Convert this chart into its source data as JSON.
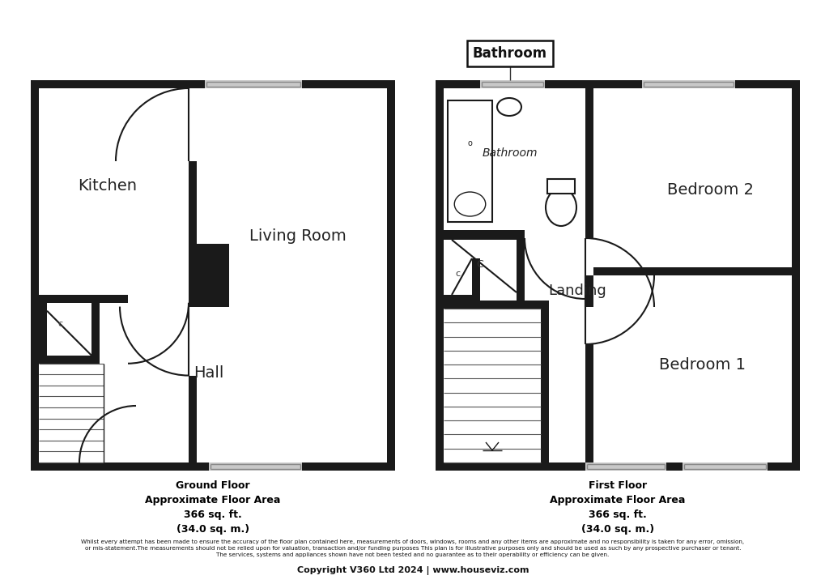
{
  "footer_ground": "Ground Floor\nApproximate Floor Area\n366 sq. ft.\n(34.0 sq. m.)",
  "footer_first": "First Floor\nApproximate Floor Area\n366 sq. ft.\n(34.0 sq. m.)",
  "disclaimer": "Whilst every attempt has been made to ensure the accuracy of the floor plan contained here, measurements of doors, windows, rooms and any other items are approximate and no responsibility is taken for any error, omission,\nor mis-statement.The measurements should not be relied upon for valuation, transaction and/or funding purposes This plan is for illustrative purposes only and should be used as such by any prospective purchaser or tenant.\nThe services, systems and appliances shown have not been tested and no guarantee as to their operability or efficiency can be given.",
  "copyright": "Copyright V360 Ltd 2024 | www.houseviz.com",
  "bathroom_label": "Bathroom",
  "wall_color": "#1a1a1a",
  "window_color": "#c8c8c8"
}
